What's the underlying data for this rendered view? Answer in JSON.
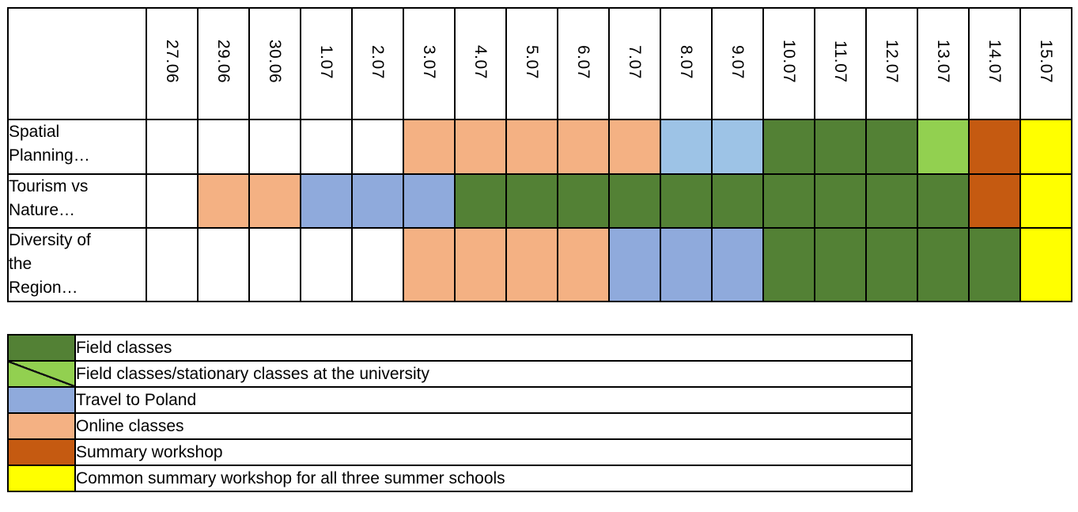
{
  "chart_data": {
    "type": "table",
    "subtype": "gantt_schedule",
    "title": "",
    "xlabel": "",
    "ylabel": "",
    "columns": [
      "27.06",
      "29.06",
      "30.06",
      "1.07",
      "2.07",
      "3.07",
      "4.07",
      "5.07",
      "6.07",
      "7.07",
      "8.07",
      "9.07",
      "10.07",
      "11.07",
      "12.07",
      "13.07",
      "14.07",
      "15.07"
    ],
    "rows": [
      {
        "label": "Spatial\nPlanning…",
        "cells": [
          null,
          null,
          null,
          null,
          null,
          "online",
          "online",
          "online",
          "online",
          "online",
          "travel_light",
          "travel_light",
          "field",
          "field",
          "field",
          "field_stationary",
          "summary",
          "common"
        ]
      },
      {
        "label": "Tourism vs\nNature…",
        "cells": [
          null,
          "online",
          "online",
          "travel",
          "travel",
          "travel",
          "field",
          "field",
          "field",
          "field",
          "field",
          "field",
          "field",
          "field",
          "field",
          "field",
          "summary",
          "common"
        ]
      },
      {
        "label": "Diversity of\nthe\nRegion…",
        "cells": [
          null,
          null,
          null,
          null,
          null,
          "online",
          "online",
          "online",
          "online",
          "travel",
          "travel",
          "travel",
          "field",
          "field",
          "field",
          "field",
          "field",
          "common"
        ]
      }
    ],
    "activities": {
      "field": {
        "label": "Field classes",
        "color": "#538135",
        "diagonal": false
      },
      "field_stationary": {
        "label": "Field classes/stationary classes at the university",
        "color": "#92D050",
        "diagonal": true
      },
      "travel": {
        "label": "Travel to Poland",
        "color": "#8FAADC",
        "diagonal": false
      },
      "travel_light": {
        "label": "Travel to Poland",
        "color": "#9DC3E6",
        "diagonal": false
      },
      "online": {
        "label": "Online classes",
        "color": "#F4B183",
        "diagonal": false
      },
      "summary": {
        "label": "Summary workshop",
        "color": "#C55A11",
        "diagonal": false
      },
      "common": {
        "label": "Common summary workshop for all three summer schools",
        "color": "#FFFF00",
        "diagonal": false
      }
    },
    "legend": [
      {
        "key": "field",
        "label": "Field classes"
      },
      {
        "key": "field_stationary",
        "label": "Field classes/stationary classes at the university"
      },
      {
        "key": "travel",
        "label": "Travel to Poland"
      },
      {
        "key": "online",
        "label": "Online classes"
      },
      {
        "key": "summary",
        "label": "Summary workshop"
      },
      {
        "key": "common",
        "label": "Common summary workshop for all three summer schools"
      }
    ],
    "layout": {
      "grid": "off",
      "legend_position": "bottom-left",
      "empty_cell_color": "#FFFFFF"
    }
  }
}
